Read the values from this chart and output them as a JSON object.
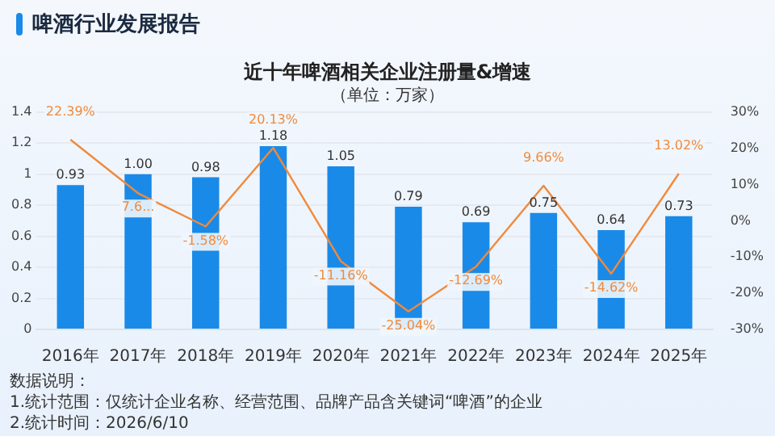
{
  "chart_data": {
    "type": "bar",
    "title": "啤酒行业发展报告",
    "subtitle": "近十年啤酒相关企业注册量&增速",
    "categories": [
      "2016年",
      "2017年",
      "2018年",
      "2019年",
      "2020年",
      "2021年",
      "2022年",
      "2023年",
      "2024年",
      "2025年"
    ],
    "series": [
      {
        "color": "#1a8ae8",
        "values": [
          0.93,
          1.0,
          0.98,
          1.18,
          1.05,
          0.79,
          0.69,
          0.75,
          0.64,
          0.73
        ],
        "value_labels": [
          "0.93",
          "1.00",
          "0.98",
          "1.18",
          "1.05",
          "0.79",
          "0.69",
          "0.75",
          "0.64",
          "0.73"
        ]
      },
      {
        "type": "line",
        "axis": "y2",
        "color": "#f08a3c",
        "values": [
          22.39,
          7.6,
          -1.58,
          20.13,
          -11.16,
          -25.04,
          -12.69,
          9.66,
          -14.62,
          13.02
        ],
        "value_labels": [
          "22.39%",
          "7.6...",
          "-1.58%",
          "20.13%",
          "-11.16%",
          "-25.04%",
          "-12.69%",
          "9.66%",
          "-14.62%",
          "13.02%"
        ]
      }
    ],
    "ylim": [
      0,
      1.4
    ],
    "yticks": [
      0,
      0.2,
      0.4,
      0.6,
      0.8,
      1,
      1.2,
      1.4
    ],
    "y2lim": [
      -30,
      30
    ],
    "y2ticks": [
      {
        "value": -30,
        "label": "-30%"
      },
      {
        "value": -20,
        "label": "-20%"
      },
      {
        "value": -10,
        "label": "-10%"
      },
      {
        "value": 0,
        "label": "0%"
      },
      {
        "value": 10,
        "label": "10%"
      },
      {
        "value": 20,
        "label": "20%"
      },
      {
        "value": 30,
        "label": "30%"
      }
    ],
    "grid": "y",
    "legend": false,
    "marker": "none",
    "line_style": "solid",
    "annotations": [
      "（单位：万家）",
      "数据说明：",
      "1.统计范围：仅统计企业名称、经营范围、品牌产品含关键词“啤酒”的企业",
      "2.统计时间：2026/6/10"
    ]
  }
}
